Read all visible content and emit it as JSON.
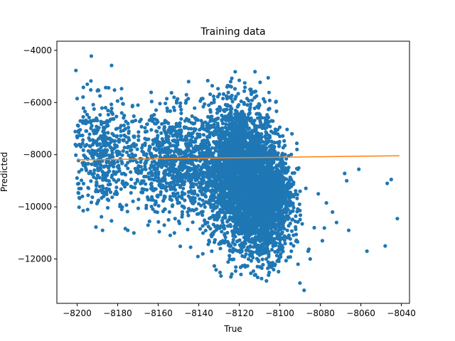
{
  "chart_data": {
    "type": "scatter",
    "title": "Training data",
    "xlabel": "True",
    "ylabel": "Predicted",
    "xlim": [
      -8210,
      -8036
    ],
    "ylim": [
      -13700,
      -3650
    ],
    "x_ticks": [
      -8200,
      -8180,
      -8160,
      -8140,
      -8120,
      -8100,
      -8080,
      -8060,
      -8040
    ],
    "y_ticks": [
      -12000,
      -10000,
      -8000,
      -6000,
      -4000
    ],
    "x_tick_labels": [
      "−8200",
      "−8180",
      "−8160",
      "−8140",
      "−8120",
      "−8100",
      "−8080",
      "−8060",
      "−8040"
    ],
    "y_tick_labels": [
      "−12000",
      "−10000",
      "−8000",
      "−6000",
      "−4000"
    ],
    "grid": false,
    "series": [
      {
        "kind": "scatter",
        "color": "#1f77b4",
        "clusters": [
          {
            "cx": -8120,
            "cy": -8600,
            "sx": 9,
            "sy": 1300,
            "n": 2600
          },
          {
            "cx": -8108,
            "cy": -9900,
            "sx": 7,
            "sy": 1000,
            "n": 1800
          },
          {
            "cx": -8150,
            "cy": -8300,
            "sx": 12,
            "sy": 950,
            "n": 900
          },
          {
            "cx": -8188,
            "cy": -7900,
            "sx": 8,
            "sy": 1050,
            "n": 450
          }
        ],
        "outliers": [
          [
            -8193,
            -4220
          ],
          [
            -8183,
            -4580
          ],
          [
            -8122,
            -4820
          ],
          [
            -8088,
            -13200
          ],
          [
            -8042,
            -10450
          ],
          [
            -8057,
            -11700
          ],
          [
            -8048,
            -11500
          ],
          [
            -8047,
            -9100
          ],
          [
            -8045,
            -8950
          ],
          [
            -8061,
            -8560
          ],
          [
            -8066,
            -10900
          ],
          [
            -8067,
            -9000
          ],
          [
            -8068,
            -8720
          ],
          [
            -8072,
            -10600
          ],
          [
            -8074,
            -10200
          ],
          [
            -8077,
            -9850
          ],
          [
            -8079,
            -11300
          ],
          [
            -8081,
            -9500
          ],
          [
            -8083,
            -10800
          ],
          [
            -8085,
            -12000
          ],
          [
            -8086,
            -11700
          ],
          [
            -8091,
            -12200
          ],
          [
            -8175,
            -10900
          ],
          [
            -8172,
            -11000
          ],
          [
            -8178,
            -10100
          ],
          [
            -8165,
            -10700
          ],
          [
            -8197,
            -10150
          ],
          [
            -8188,
            -10380
          ],
          [
            -8199,
            -9650
          ],
          [
            -8145,
            -5200
          ],
          [
            -8138,
            -5850
          ],
          [
            -8126,
            -5400
          ],
          [
            -8120,
            -5150
          ],
          [
            -8114,
            -5600
          ],
          [
            -8104,
            -6700
          ],
          [
            -8100,
            -6950
          ],
          [
            -8094,
            -7200
          ],
          [
            -8190,
            -5550
          ],
          [
            -8186,
            -6200
          ],
          [
            -8178,
            -6400
          ],
          [
            -8170,
            -6100
          ],
          [
            -8200,
            -5850
          ],
          [
            -8195,
            -5300
          ],
          [
            -8197,
            -6550
          ],
          [
            -8129,
            -12650
          ],
          [
            -8112,
            -12600
          ],
          [
            -8109,
            -12750
          ],
          [
            -8117,
            -12300
          ],
          [
            -8138,
            -11800
          ],
          [
            -8144,
            -11550
          ],
          [
            -8152,
            -11000
          ],
          [
            -8157,
            -10700
          ]
        ]
      },
      {
        "kind": "line",
        "color": "#ff7f0e",
        "x": [
          -8200,
          -8041
        ],
        "y": [
          -8200,
          -8040
        ]
      }
    ]
  }
}
